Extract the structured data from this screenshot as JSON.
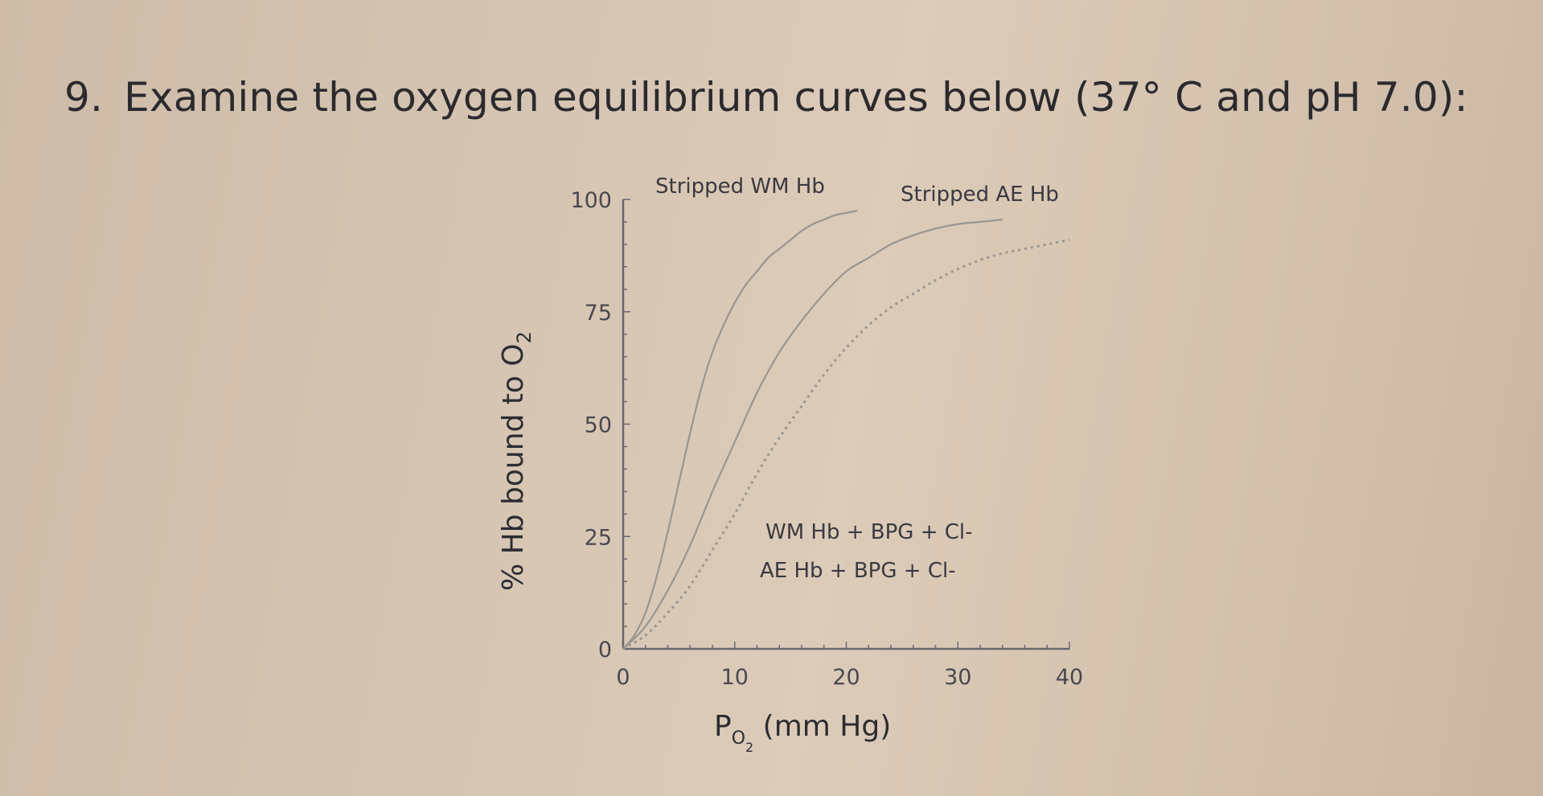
{
  "question": {
    "number": "9.",
    "text": "Examine the oxygen equilibrium curves below (37° C and pH 7.0):"
  },
  "chart_data": {
    "type": "line",
    "title": "",
    "xlabel_main": "P",
    "xlabel_sub": "O",
    "xlabel_subsub": "2",
    "xlabel_rest": " (mm Hg)",
    "ylabel_main": "% Hb bound to O",
    "ylabel_sub": "2",
    "xlim": [
      0,
      40
    ],
    "ylim": [
      0,
      100
    ],
    "xticks": [
      "0",
      "10",
      "20",
      "30",
      "40"
    ],
    "yticks": [
      "0",
      "25",
      "50",
      "75",
      "100"
    ],
    "series": [
      {
        "name": "Stripped WM Hb",
        "style": "solid",
        "x": [
          0,
          1,
          2,
          3,
          4,
          5,
          6,
          7,
          8,
          9,
          10,
          11,
          12,
          13,
          14,
          15,
          16,
          17,
          18,
          19,
          20,
          21
        ],
        "y": [
          0,
          3,
          8,
          16,
          26,
          37,
          48,
          58,
          66,
          72,
          77,
          81,
          84,
          87,
          89,
          91,
          93,
          94.5,
          95.5,
          96.5,
          97,
          97.5
        ]
      },
      {
        "name": "Stripped AE Hb",
        "style": "solid",
        "x": [
          0,
          2,
          4,
          6,
          8,
          10,
          12,
          14,
          16,
          18,
          20,
          22,
          24,
          26,
          28,
          30,
          32,
          34
        ],
        "y": [
          0,
          5,
          13,
          23,
          35,
          46,
          57,
          66,
          73,
          79,
          84,
          87,
          90,
          92,
          93.5,
          94.5,
          95,
          95.5
        ]
      },
      {
        "name": "WM Hb + BPG + Cl-",
        "style": "dashed",
        "x": [
          0,
          2,
          4,
          6,
          8,
          10,
          12,
          14,
          16,
          18,
          20,
          22,
          24,
          26,
          28,
          30,
          32,
          34,
          36,
          38,
          40
        ],
        "y": [
          0,
          3,
          8,
          14,
          22,
          30,
          39,
          47,
          54,
          61,
          67,
          72,
          76,
          79,
          82,
          84.5,
          86.5,
          88,
          89,
          90,
          91
        ]
      }
    ],
    "annotations": [
      "WM Hb + BPG + Cl-",
      "AE Hb + BPG + Cl-"
    ],
    "grid": false,
    "legend": "none"
  },
  "colors": {
    "curve": "#9a9590",
    "axis": "#6a6770",
    "text": "#2b2a2e"
  }
}
